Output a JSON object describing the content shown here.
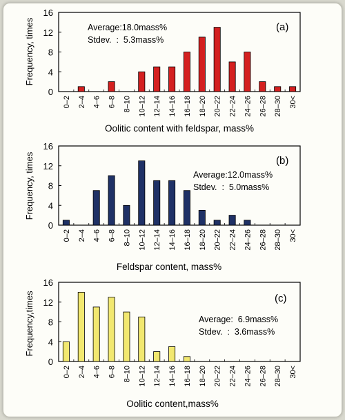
{
  "chart_data": [
    {
      "type": "bar",
      "panel_label": "(a)",
      "categories": [
        "0–2",
        "2–4",
        "4–6",
        "6–8",
        "8–10",
        "10–12",
        "12–14",
        "14–16",
        "16–18",
        "18–20",
        "20–22",
        "22–24",
        "24–26",
        "26–28",
        "28–30",
        "30<"
      ],
      "values": [
        0,
        1,
        0,
        2,
        0,
        4,
        5,
        5,
        8,
        11,
        13,
        6,
        8,
        2,
        1,
        1
      ],
      "bar_color": "#d42020",
      "xlabel": "Oolitic content with feldspar, mass%",
      "ylabel": "Frequency, times",
      "ylim": [
        0,
        16
      ],
      "yticks": [
        "0",
        "4",
        "8",
        "12",
        "16"
      ],
      "stats": [
        "Average:18.0mass%",
        "Stdev.  :  5.3mass%"
      ]
    },
    {
      "type": "bar",
      "panel_label": "(b)",
      "categories": [
        "0–2",
        "2–4",
        "4–6",
        "6–8",
        "8–10",
        "10–12",
        "12–14",
        "14–16",
        "16–18",
        "18–20",
        "20–22",
        "22–24",
        "24–26",
        "26–28",
        "28–30",
        "30<"
      ],
      "values": [
        1,
        0,
        7,
        10,
        4,
        13,
        9,
        9,
        7,
        3,
        1,
        2,
        1,
        0,
        0,
        0
      ],
      "bar_color": "#1f3166",
      "xlabel": "Feldspar content, mass%",
      "ylabel": "Frequency, times",
      "ylim": [
        0,
        16
      ],
      "yticks": [
        "0",
        "4",
        "8",
        "12",
        "16"
      ],
      "stats": [
        "Average:12.0mass%",
        "Stdev.  :  5.0mass%"
      ]
    },
    {
      "type": "bar",
      "panel_label": "(c)",
      "categories": [
        "0–2",
        "2–4",
        "4–6",
        "6–8",
        "8–10",
        "10–12",
        "12–14",
        "14–16",
        "16–18",
        "18–20",
        "20–22",
        "22–24",
        "24–26",
        "26–28",
        "28–30",
        "30<"
      ],
      "values": [
        4,
        14,
        11,
        13,
        10,
        9,
        2,
        3,
        1,
        0,
        0,
        0,
        0,
        0,
        0,
        0
      ],
      "bar_color": "#f2e870",
      "xlabel": "Oolitic content,mass%",
      "ylabel": "Frequency,times",
      "ylim": [
        0,
        16
      ],
      "yticks": [
        "0",
        "4",
        "8",
        "12",
        "16"
      ],
      "stats": [
        "Average:  6.9mass%",
        "Stdev.  :  3.6mass%"
      ]
    }
  ]
}
